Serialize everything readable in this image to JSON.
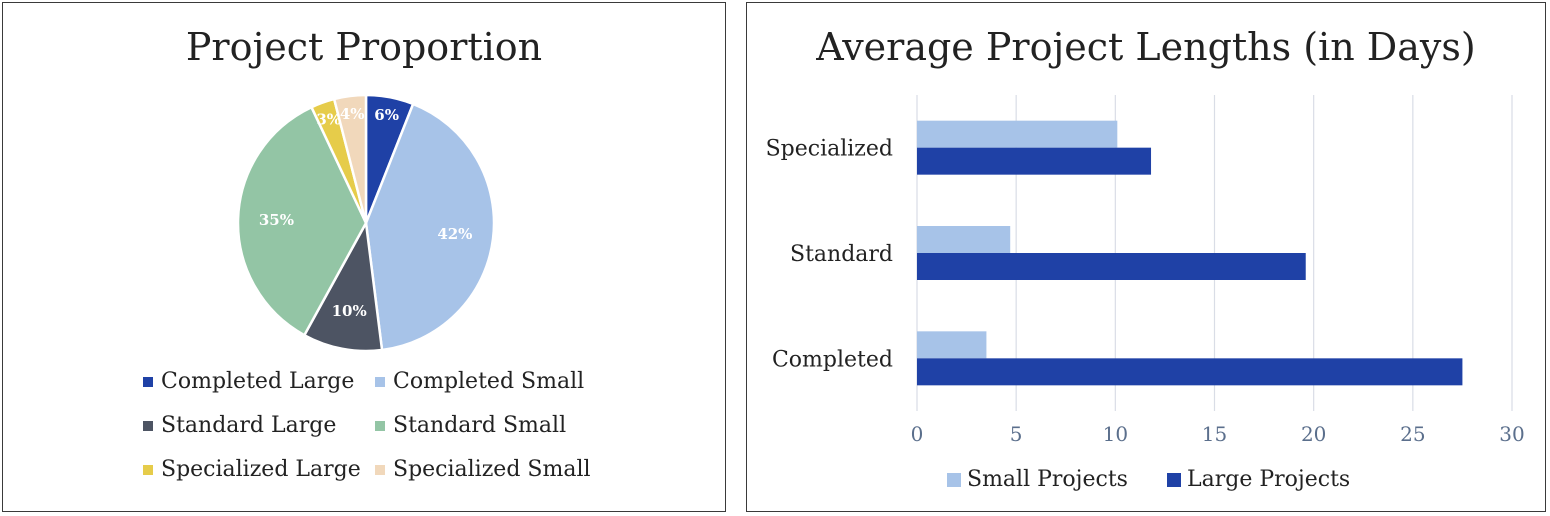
{
  "chart_data": [
    {
      "type": "pie",
      "title": "Project Proportion",
      "categories": [
        "Completed Large",
        "Completed Small",
        "Standard Large",
        "Standard Small",
        "Specialized Large",
        "Specialized Small"
      ],
      "values": [
        6,
        42,
        10,
        35,
        3,
        4
      ],
      "labels": [
        "6%",
        "42%",
        "10%",
        "35%",
        "3%",
        "4%"
      ],
      "colors": [
        "#1f41a6",
        "#a7c3e8",
        "#4d5463",
        "#93c5a5",
        "#e6cc4a",
        "#f1d8bb"
      ],
      "legend_position": "bottom"
    },
    {
      "type": "bar",
      "orientation": "horizontal",
      "title": "Average Project Lengths (in Days)",
      "categories": [
        "Completed",
        "Standard",
        "Specialized"
      ],
      "series": [
        {
          "name": "Small Projects",
          "values": [
            3.5,
            4.7,
            10.1
          ],
          "color": "#a7c3e8"
        },
        {
          "name": "Large Projects",
          "values": [
            27.5,
            19.6,
            11.8
          ],
          "color": "#1f41a6"
        }
      ],
      "xlim": [
        0,
        30
      ],
      "xticks": [
        "0",
        "5",
        "10",
        "15",
        "20",
        "25",
        "30"
      ],
      "grid": "vertical",
      "legend_position": "bottom"
    }
  ]
}
